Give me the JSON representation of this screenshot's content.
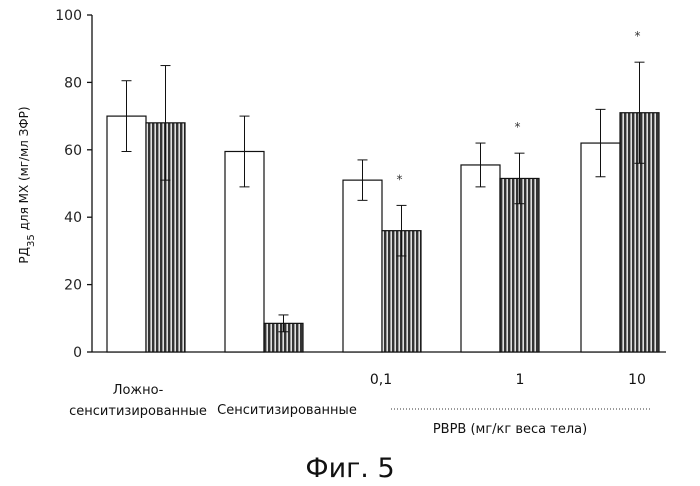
{
  "chart_data": {
    "type": "bar",
    "ylabel_main": "РД",
    "ylabel_sub": "35",
    "ylabel_rest": " для МХ (мг/мл ЗФР)",
    "ylim": [
      0,
      100
    ],
    "yticks": [
      0,
      20,
      40,
      60,
      80,
      100
    ],
    "groups": [
      {
        "label_lines": [
          "Ложно-",
          "сенситизированные"
        ],
        "dose": "",
        "bars": [
          {
            "style": "open",
            "value": 70,
            "err": 10.5
          },
          {
            "style": "hatched",
            "value": 68,
            "err": 17
          }
        ],
        "star": ""
      },
      {
        "label_lines": [
          "Сенситизированные"
        ],
        "dose": "",
        "bars": [
          {
            "style": "open",
            "value": 59.5,
            "err": 10.5
          },
          {
            "style": "hatched",
            "value": 8.5,
            "err": 2.5
          }
        ],
        "star": ""
      },
      {
        "label_lines": [],
        "dose": "0,1",
        "bars": [
          {
            "style": "open",
            "value": 51,
            "err": 6
          },
          {
            "style": "hatched",
            "value": 36,
            "err": 7.5
          }
        ],
        "star": "*"
      },
      {
        "label_lines": [],
        "dose": "1",
        "bars": [
          {
            "style": "open",
            "value": 55.5,
            "err": 6.5
          },
          {
            "style": "hatched",
            "value": 51.5,
            "err": 7.5
          }
        ],
        "star": "*"
      },
      {
        "label_lines": [],
        "dose": "10",
        "bars": [
          {
            "style": "open",
            "value": 62,
            "err": 10
          },
          {
            "style": "hatched",
            "value": 71,
            "err": 15
          }
        ],
        "star": "*"
      }
    ],
    "dose_axis_label": "РВРВ (мг/кг веса тела)",
    "caption": "Фиг. 5"
  }
}
